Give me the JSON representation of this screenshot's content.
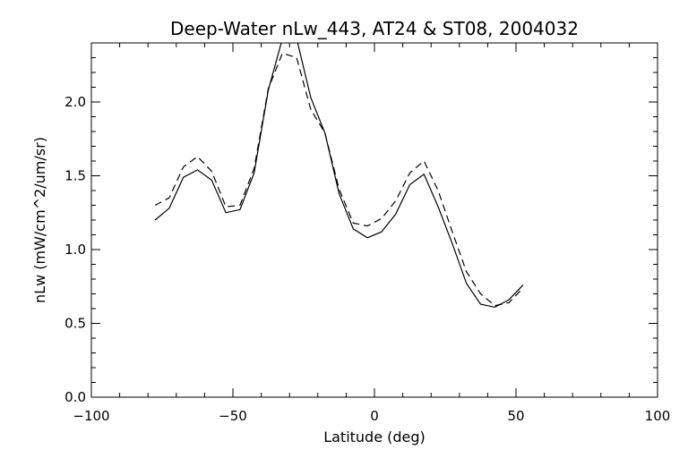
{
  "chart_data": {
    "type": "line",
    "title": "Deep-Water nLw_443, AT24 & ST08, 2004032",
    "xlabel": "Latitude (deg)",
    "ylabel": "nLw (mW/cm^2/um/sr)",
    "xlim": [
      -100,
      100
    ],
    "ylim": [
      0.0,
      2.4
    ],
    "xticks": [
      -100,
      -50,
      0,
      50,
      100
    ],
    "xtick_labels": [
      "−100",
      "−50",
      "0",
      "50",
      "100"
    ],
    "yticks": [
      0.0,
      0.5,
      1.0,
      1.5,
      2.0
    ],
    "ytick_labels": [
      "0.0",
      "0.5",
      "1.0",
      "1.5",
      "2.0"
    ],
    "grid": false,
    "series": [
      {
        "style": "solid",
        "color": "#000000",
        "x": [
          -77.5,
          -72.5,
          -67.5,
          -62.5,
          -57.5,
          -52.5,
          -47.5,
          -42.5,
          -37.5,
          -32.5,
          -27.5,
          -22.5,
          -17.5,
          -12.5,
          -7.5,
          -2.5,
          2.5,
          7.5,
          12.5,
          17.5,
          22.5,
          27.5,
          32.5,
          37.5,
          42.5,
          47.5,
          52.5
        ],
        "values": [
          1.2,
          1.28,
          1.49,
          1.54,
          1.47,
          1.25,
          1.27,
          1.52,
          2.08,
          2.43,
          2.43,
          2.03,
          1.79,
          1.38,
          1.14,
          1.08,
          1.12,
          1.24,
          1.44,
          1.51,
          1.29,
          1.04,
          0.77,
          0.63,
          0.61,
          0.66,
          0.76
        ]
      },
      {
        "style": "dashed",
        "color": "#000000",
        "x": [
          -77.5,
          -72.5,
          -67.5,
          -62.5,
          -57.5,
          -52.5,
          -47.5,
          -42.5,
          -37.5,
          -32.5,
          -27.5,
          -22.5,
          -17.5,
          -12.5,
          -7.5,
          -2.5,
          2.5,
          7.5,
          12.5,
          17.5,
          22.5,
          27.5,
          32.5,
          37.5,
          42.5,
          47.5,
          52.5
        ],
        "values": [
          1.3,
          1.35,
          1.56,
          1.63,
          1.53,
          1.29,
          1.3,
          1.55,
          2.09,
          2.33,
          2.3,
          1.95,
          1.79,
          1.41,
          1.18,
          1.16,
          1.21,
          1.33,
          1.52,
          1.6,
          1.4,
          1.12,
          0.85,
          0.7,
          0.62,
          0.64,
          0.74
        ]
      }
    ]
  }
}
